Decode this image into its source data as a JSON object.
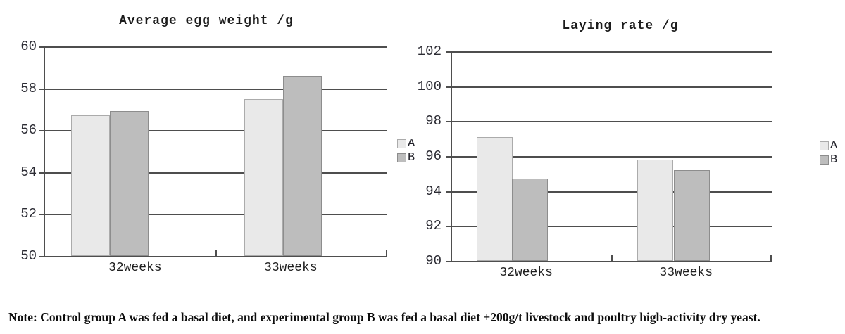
{
  "note": "Note: Control group A was fed a basal diet, and experimental group B was fed a basal diet +200g/t livestock and poultry high-activity dry yeast.",
  "colors": {
    "series_fills": [
      "#e9e9e9",
      "#bdbdbd"
    ],
    "series_borders": [
      "#ababab",
      "#8d8d8d"
    ],
    "axis": "#4e4e4e",
    "text": "#1e1e1e"
  },
  "chart_data": [
    {
      "type": "bar",
      "title": "Average egg weight /g",
      "categories": [
        "32weeks",
        "33weeks"
      ],
      "series": [
        {
          "name": "A",
          "values": [
            56.7,
            57.5
          ]
        },
        {
          "name": "B",
          "values": [
            56.9,
            58.6
          ]
        }
      ],
      "ylim": [
        50,
        60
      ],
      "yticks": [
        60,
        58,
        56,
        54,
        52,
        50
      ],
      "grid": true,
      "legend_position": "right"
    },
    {
      "type": "bar",
      "title": "Laying rate /g",
      "categories": [
        "32weeks",
        "33weeks"
      ],
      "series": [
        {
          "name": "A",
          "values": [
            97.1,
            95.8
          ]
        },
        {
          "name": "B",
          "values": [
            94.7,
            95.2
          ]
        }
      ],
      "ylim": [
        90,
        102
      ],
      "yticks": [
        102,
        100,
        98,
        96,
        94,
        92,
        90
      ],
      "grid": true,
      "legend_position": "right"
    }
  ]
}
